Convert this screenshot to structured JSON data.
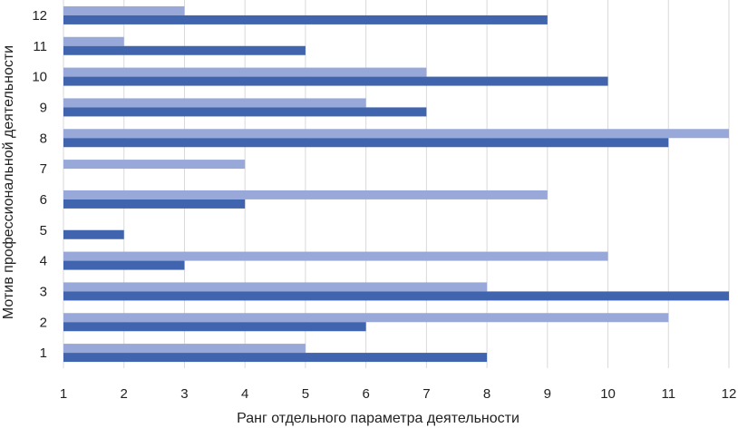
{
  "chart_data": {
    "type": "bar",
    "orientation": "horizontal",
    "categories": [
      "1",
      "2",
      "3",
      "4",
      "5",
      "6",
      "7",
      "8",
      "9",
      "10",
      "11",
      "12"
    ],
    "series": [
      {
        "color": "#4064ad",
        "values": [
          8,
          6,
          12,
          3,
          2,
          4,
          null,
          11,
          7,
          10,
          5,
          9
        ]
      },
      {
        "color": "#98a9d9",
        "values": [
          5,
          11,
          8,
          10,
          null,
          9,
          4,
          12,
          6,
          7,
          2,
          3
        ]
      }
    ],
    "xlabel": "Ранг отдельного параметра деятельности",
    "ylabel": "Мотив профессиональной деятельности",
    "xlim": [
      1,
      12
    ],
    "xticks": [
      "1",
      "2",
      "3",
      "4",
      "5",
      "6",
      "7",
      "8",
      "9",
      "10",
      "11",
      "12"
    ],
    "grid": true,
    "grid_color": "#d9d9d9",
    "legend": "none"
  }
}
